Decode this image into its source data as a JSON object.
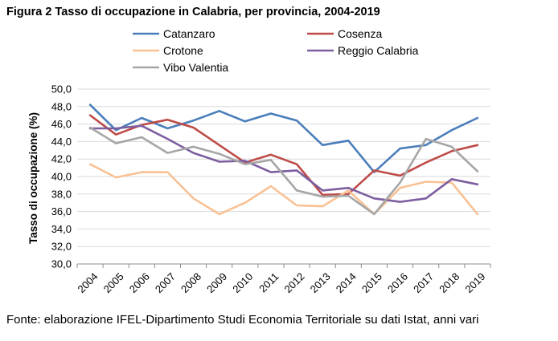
{
  "figure": {
    "title": "Figura 2 Tasso di occupazione in Calabria, per provincia, 2004-2019",
    "source": "Fonte: elaborazione IFEL-Dipartimento Studi Economia Territoriale su dati Istat, anni vari"
  },
  "chart_data": {
    "type": "line",
    "title": "Figura 2 Tasso di occupazione in Calabria, per provincia, 2004-2019",
    "xlabel": "",
    "ylabel": "Tasso di occupazione (%)",
    "ylim": [
      30,
      50
    ],
    "y_step": 2,
    "y_tick_labels": [
      "30,0",
      "32,0",
      "34,0",
      "36,0",
      "38,0",
      "40,0",
      "42,0",
      "44,0",
      "46,0",
      "48,0",
      "50,0"
    ],
    "grid": "horizontal",
    "legend_position": "top",
    "x": [
      "2004",
      "2005",
      "2006",
      "2007",
      "2008",
      "2009",
      "2010",
      "2011",
      "2012",
      "2013",
      "2014",
      "2015",
      "2016",
      "2017",
      "2018",
      "2019"
    ],
    "series": [
      {
        "name": "Catanzaro",
        "color": "#4a7ebb",
        "values": [
          48.2,
          45.3,
          46.7,
          45.5,
          46.4,
          47.5,
          46.3,
          47.2,
          46.4,
          43.6,
          44.1,
          40.5,
          43.2,
          43.6,
          45.3,
          46.7
        ]
      },
      {
        "name": "Cosenza",
        "color": "#be4b48",
        "values": [
          47.0,
          44.8,
          45.9,
          46.5,
          45.6,
          43.6,
          41.6,
          42.5,
          41.4,
          37.9,
          38.0,
          40.7,
          40.1,
          41.6,
          42.9,
          43.6
        ]
      },
      {
        "name": "Crotone",
        "color": "#f9c194",
        "values": [
          41.4,
          39.9,
          40.5,
          40.5,
          37.5,
          35.7,
          37.0,
          38.9,
          36.7,
          36.6,
          38.4,
          35.7,
          38.7,
          39.4,
          39.3,
          35.7
        ]
      },
      {
        "name": "Reggio Calabria",
        "color": "#7d5fa0",
        "values": [
          45.5,
          45.5,
          45.8,
          44.3,
          42.7,
          41.7,
          41.8,
          40.5,
          40.7,
          38.4,
          38.7,
          37.5,
          37.1,
          37.5,
          39.7,
          39.1
        ]
      },
      {
        "name": "Vibo Valentia",
        "color": "#a6a6a6",
        "values": [
          45.6,
          43.8,
          44.5,
          42.7,
          43.4,
          42.6,
          41.4,
          41.9,
          38.4,
          37.7,
          37.8,
          35.7,
          39.3,
          44.3,
          43.4,
          40.6
        ]
      }
    ]
  }
}
